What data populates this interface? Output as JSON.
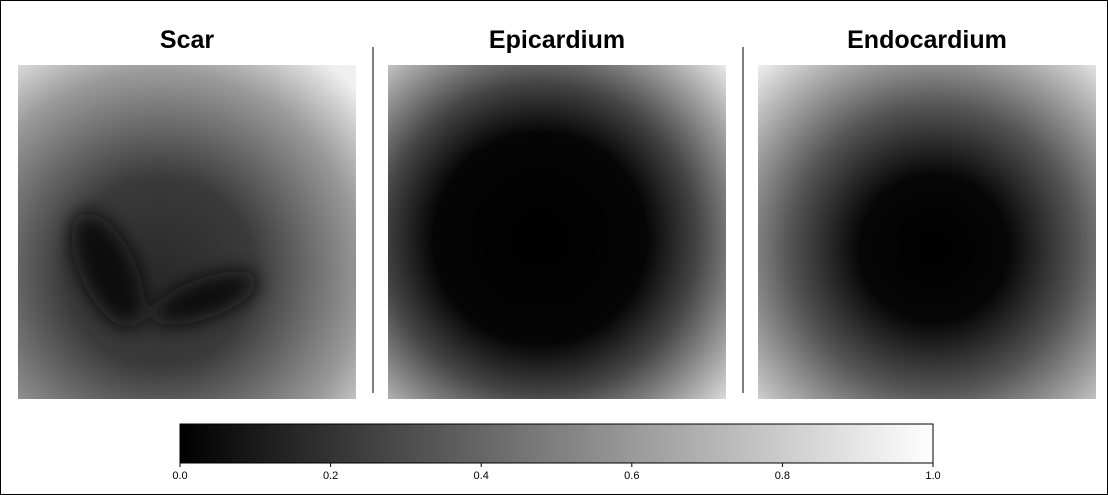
{
  "chart_data": {
    "type": "colorbar",
    "panel_titles": [
      "Scar",
      "Epicardium",
      "Endocardium"
    ],
    "colormap": [
      "#000000",
      "#ffffff"
    ],
    "xlim": [
      0,
      1
    ],
    "xticks": [
      {
        "value": 0,
        "label": "0.0"
      },
      {
        "value": 0.2,
        "label": "0.2"
      },
      {
        "value": 0.4,
        "label": "0.4"
      },
      {
        "value": 0.6,
        "label": "0.6"
      },
      {
        "value": 0.8,
        "label": "0.8"
      },
      {
        "value": 1,
        "label": "1.0"
      }
    ]
  }
}
